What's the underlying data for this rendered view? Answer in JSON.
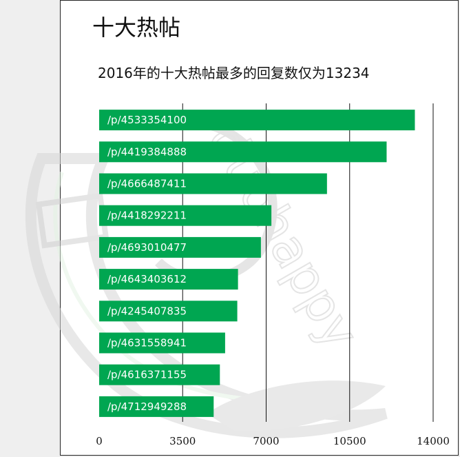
{
  "page": {
    "title": "十大热帖"
  },
  "colors": {
    "bar": "#00a651",
    "bar_shade": "#00924a",
    "grid": "#111111",
    "watermark": "#d9d9d9"
  },
  "chart_data": {
    "type": "bar",
    "orientation": "horizontal",
    "title": "2016年的十大热帖最多的回复数仅为13234",
    "categories": [
      "/p/4533354100",
      "/p/4419384888",
      "/p/4666487411",
      "/p/4418292211",
      "/p/4693010477",
      "/p/4643403612",
      "/p/4245407835",
      "/p/4631558941",
      "/p/4616371155",
      "/p/4712949288"
    ],
    "values": [
      13234,
      12050,
      9550,
      7220,
      6780,
      5820,
      5790,
      5280,
      5060,
      4800
    ],
    "xlim": [
      0,
      14000
    ],
    "xticks": [
      "0",
      "3500",
      "7000",
      "10500",
      "14000"
    ],
    "grid": "vertical",
    "legend": "none"
  }
}
